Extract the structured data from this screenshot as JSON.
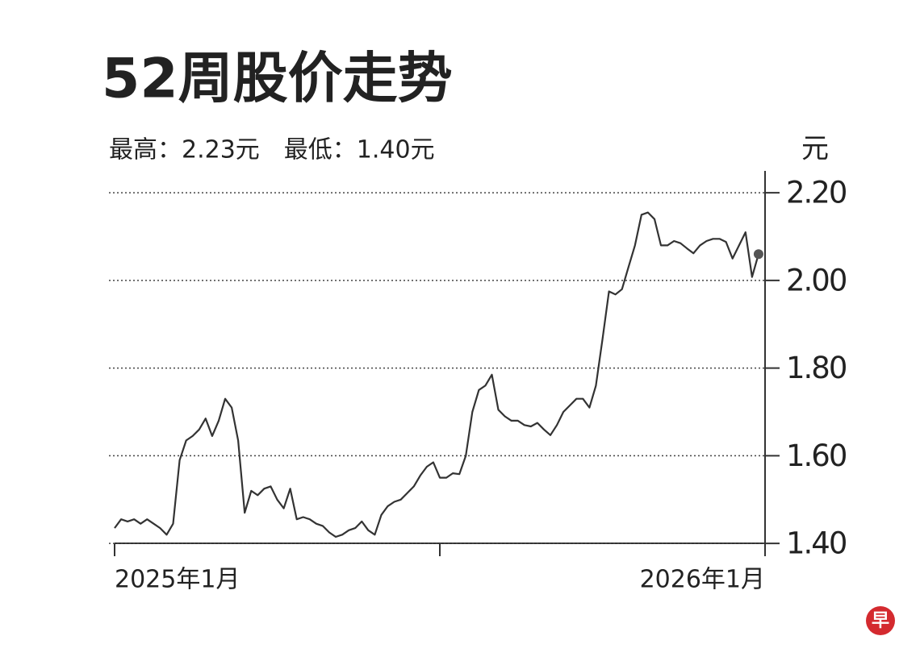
{
  "chart_data": {
    "type": "line",
    "title": "52周股价走势",
    "subtitle": "最高：2.23元　最低：1.40元",
    "y_unit": "元",
    "color": "#333333",
    "end_marker": true,
    "grid": true,
    "xlim": [
      0,
      100
    ],
    "xticks": [
      {
        "value": 0,
        "label": "2025年1月"
      },
      {
        "value": 50,
        "label": null
      },
      {
        "value": 100,
        "label": "2026年1月"
      }
    ],
    "ylim": [
      1.38,
      2.25
    ],
    "yticks": [
      {
        "value": 1.4,
        "label": "1.40"
      },
      {
        "value": 1.6,
        "label": "1.60"
      },
      {
        "value": 1.8,
        "label": "1.80"
      },
      {
        "value": 2.0,
        "label": "2.00"
      },
      {
        "value": 2.2,
        "label": "2.20"
      }
    ],
    "values": [
      1.435,
      1.455,
      1.45,
      1.455,
      1.445,
      1.455,
      1.445,
      1.435,
      1.42,
      1.445,
      1.59,
      1.635,
      1.645,
      1.66,
      1.685,
      1.645,
      1.68,
      1.73,
      1.71,
      1.635,
      1.47,
      1.52,
      1.51,
      1.525,
      1.53,
      1.5,
      1.48,
      1.525,
      1.455,
      1.46,
      1.455,
      1.445,
      1.44,
      1.425,
      1.415,
      1.42,
      1.43,
      1.435,
      1.45,
      1.43,
      1.42,
      1.465,
      1.485,
      1.495,
      1.5,
      1.515,
      1.53,
      1.555,
      1.575,
      1.585,
      1.55,
      1.55,
      1.56,
      1.558,
      1.6,
      1.7,
      1.75,
      1.76,
      1.785,
      1.705,
      1.69,
      1.68,
      1.68,
      1.67,
      1.667,
      1.675,
      1.66,
      1.647,
      1.67,
      1.7,
      1.715,
      1.73,
      1.73,
      1.71,
      1.76,
      1.865,
      1.975,
      1.968,
      1.98,
      2.03,
      2.08,
      2.15,
      2.155,
      2.14,
      2.08,
      2.08,
      2.09,
      2.085,
      2.073,
      2.062,
      2.08,
      2.09,
      2.095,
      2.095,
      2.088,
      2.05,
      2.08,
      2.11,
      2.008,
      2.06
    ]
  },
  "logo": "早"
}
